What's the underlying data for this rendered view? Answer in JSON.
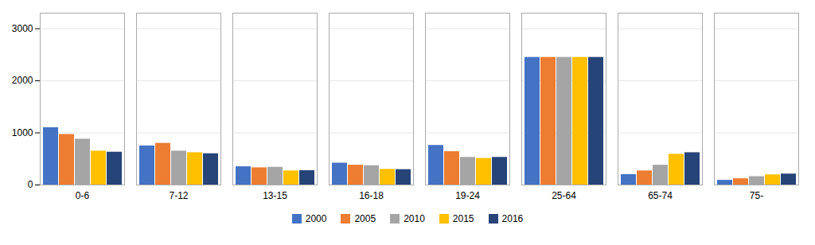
{
  "chart_data": {
    "type": "bar",
    "categories": [
      "0-6",
      "7-12",
      "13-15",
      "16-18",
      "19-24",
      "25-64",
      "65-74",
      "75-"
    ],
    "series": [
      {
        "name": "2000",
        "color": "#4472C4",
        "values": [
          1100,
          750,
          350,
          420,
          760,
          2450,
          200,
          90
        ]
      },
      {
        "name": "2005",
        "color": "#ED7D31",
        "values": [
          970,
          800,
          330,
          380,
          640,
          2450,
          270,
          120
        ]
      },
      {
        "name": "2010",
        "color": "#A5A5A5",
        "values": [
          880,
          650,
          340,
          370,
          530,
          2450,
          380,
          160
        ]
      },
      {
        "name": "2015",
        "color": "#FFC000",
        "values": [
          650,
          620,
          270,
          300,
          510,
          2450,
          590,
          195
        ]
      },
      {
        "name": "2016",
        "color": "#264478",
        "values": [
          630,
          600,
          275,
          295,
          530,
          2450,
          620,
          210
        ]
      }
    ],
    "ylim": [
      0,
      3300
    ],
    "yticks": [
      0,
      1000,
      2000,
      3000
    ],
    "grid": true,
    "legend": "bottom"
  }
}
